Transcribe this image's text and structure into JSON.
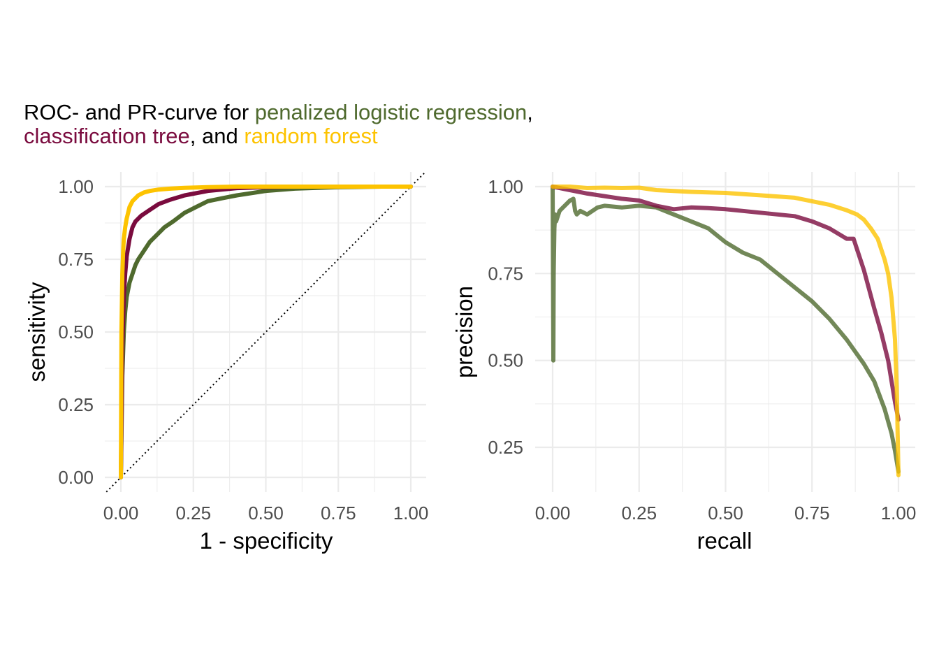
{
  "title": {
    "part1": "ROC- and PR-curve for ",
    "model1": "penalized logistic regression",
    "part2": ",",
    "model2": "classification tree",
    "part3": ", and ",
    "model3": "random forest"
  },
  "colors": {
    "penalized_logistic_regression": "#4f6a2e",
    "classification_tree": "#7a0b3e",
    "random_forest": "#fdc300",
    "grid": "#ebebeb",
    "tick_text": "#4d4d4d"
  },
  "chart_data": [
    {
      "type": "line",
      "panel": "roc",
      "xlabel": "1 - specificity",
      "ylabel": "sensitivity",
      "xlim": [
        0,
        1
      ],
      "ylim": [
        0,
        1
      ],
      "xticks": [
        "0.00",
        "0.25",
        "0.50",
        "0.75",
        "1.00"
      ],
      "yticks": [
        "0.00",
        "0.25",
        "0.50",
        "0.75",
        "1.00"
      ],
      "grid": true,
      "reference_line": "diagonal",
      "series": [
        {
          "name": "penalized logistic regression",
          "x": [
            0,
            0.005,
            0.01,
            0.015,
            0.02,
            0.03,
            0.04,
            0.05,
            0.06,
            0.08,
            0.1,
            0.12,
            0.15,
            0.18,
            0.22,
            0.26,
            0.3,
            0.35,
            0.4,
            0.5,
            0.6,
            0.75,
            0.9,
            1.0
          ],
          "y": [
            0,
            0.35,
            0.5,
            0.57,
            0.62,
            0.67,
            0.7,
            0.73,
            0.75,
            0.78,
            0.81,
            0.83,
            0.86,
            0.88,
            0.91,
            0.93,
            0.95,
            0.96,
            0.97,
            0.985,
            0.993,
            0.998,
            1.0,
            1.0
          ]
        },
        {
          "name": "classification tree",
          "x": [
            0,
            0.005,
            0.01,
            0.015,
            0.02,
            0.03,
            0.04,
            0.05,
            0.07,
            0.1,
            0.13,
            0.17,
            0.22,
            0.3,
            0.4,
            0.5,
            0.6,
            0.8,
            1.0
          ],
          "y": [
            0,
            0.45,
            0.62,
            0.7,
            0.76,
            0.82,
            0.86,
            0.88,
            0.9,
            0.92,
            0.94,
            0.955,
            0.97,
            0.985,
            0.995,
            0.998,
            1.0,
            1.0,
            1.0
          ]
        },
        {
          "name": "random forest",
          "x": [
            0,
            0.002,
            0.005,
            0.008,
            0.01,
            0.015,
            0.02,
            0.025,
            0.03,
            0.04,
            0.05,
            0.06,
            0.08,
            0.1,
            0.13,
            0.17,
            0.22,
            0.3,
            0.4,
            0.5,
            0.7,
            1.0
          ],
          "y": [
            0,
            0.5,
            0.7,
            0.78,
            0.82,
            0.86,
            0.89,
            0.91,
            0.93,
            0.95,
            0.96,
            0.97,
            0.98,
            0.985,
            0.99,
            0.993,
            0.996,
            0.998,
            1.0,
            1.0,
            1.0,
            1.0
          ]
        }
      ]
    },
    {
      "type": "line",
      "panel": "pr",
      "xlabel": "recall",
      "ylabel": "precision",
      "xlim": [
        0,
        1
      ],
      "ylim": [
        0.17,
        1.0
      ],
      "xticks": [
        "0.00",
        "0.25",
        "0.50",
        "0.75",
        "1.00"
      ],
      "yticks": [
        "0.25",
        "0.50",
        "0.75",
        "1.00"
      ],
      "grid": true,
      "series": [
        {
          "name": "penalized logistic regression",
          "x": [
            0,
            0.002,
            0.003,
            0.005,
            0.007,
            0.01,
            0.02,
            0.03,
            0.04,
            0.05,
            0.06,
            0.065,
            0.07,
            0.08,
            0.1,
            0.13,
            0.15,
            0.2,
            0.25,
            0.3,
            0.35,
            0.4,
            0.45,
            0.5,
            0.55,
            0.6,
            0.65,
            0.7,
            0.75,
            0.8,
            0.85,
            0.9,
            0.93,
            0.96,
            0.98,
            0.99,
            1.0
          ],
          "y": [
            1.0,
            0.5,
            0.75,
            0.88,
            0.92,
            0.9,
            0.93,
            0.94,
            0.95,
            0.96,
            0.965,
            0.93,
            0.92,
            0.93,
            0.92,
            0.94,
            0.945,
            0.94,
            0.945,
            0.94,
            0.92,
            0.9,
            0.88,
            0.84,
            0.81,
            0.79,
            0.75,
            0.71,
            0.67,
            0.62,
            0.56,
            0.49,
            0.44,
            0.36,
            0.29,
            0.24,
            0.18
          ]
        },
        {
          "name": "classification tree",
          "x": [
            0,
            0.05,
            0.1,
            0.2,
            0.25,
            0.3,
            0.35,
            0.4,
            0.45,
            0.5,
            0.55,
            0.6,
            0.65,
            0.7,
            0.75,
            0.8,
            0.85,
            0.87,
            0.9,
            0.93,
            0.95,
            0.97,
            0.98,
            0.99,
            1.0
          ],
          "y": [
            1.0,
            0.99,
            0.98,
            0.965,
            0.96,
            0.945,
            0.935,
            0.94,
            0.938,
            0.935,
            0.93,
            0.925,
            0.92,
            0.915,
            0.9,
            0.88,
            0.85,
            0.85,
            0.76,
            0.65,
            0.58,
            0.5,
            0.44,
            0.38,
            0.33
          ]
        },
        {
          "name": "random forest",
          "x": [
            0,
            0.05,
            0.1,
            0.15,
            0.2,
            0.25,
            0.3,
            0.4,
            0.5,
            0.6,
            0.7,
            0.75,
            0.8,
            0.85,
            0.88,
            0.9,
            0.92,
            0.94,
            0.96,
            0.97,
            0.98,
            0.99,
            0.995,
            1.0
          ],
          "y": [
            1.0,
            1.0,
            0.996,
            0.997,
            0.996,
            0.997,
            0.99,
            0.985,
            0.982,
            0.975,
            0.968,
            0.958,
            0.948,
            0.932,
            0.92,
            0.905,
            0.88,
            0.85,
            0.79,
            0.75,
            0.68,
            0.56,
            0.42,
            0.17
          ]
        }
      ]
    }
  ]
}
